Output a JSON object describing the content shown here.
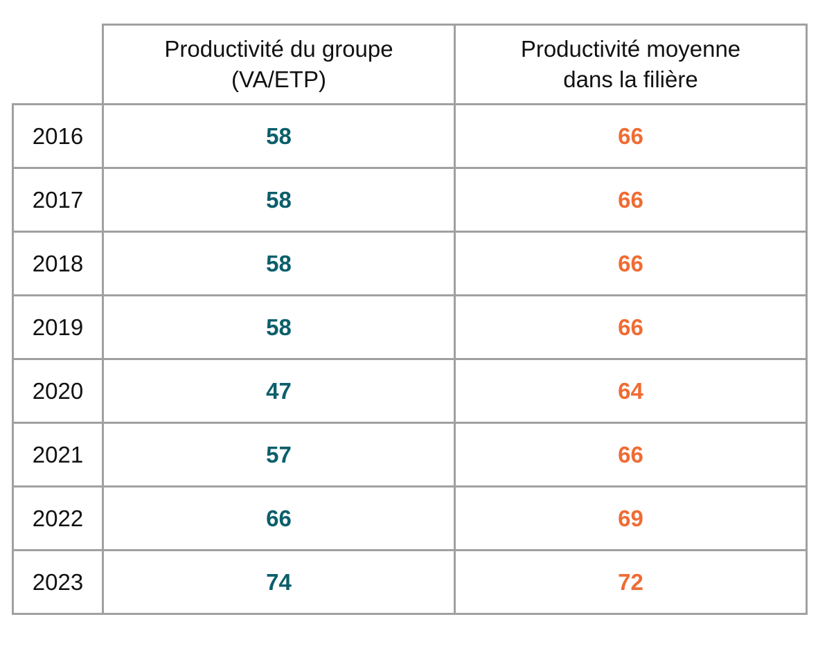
{
  "colors": {
    "group": "#0b5f6b",
    "filiere": "#ef6c33",
    "border": "#a0a0a0"
  },
  "chart_data": {
    "type": "table",
    "columns": [
      "",
      "Productivité du groupe (VA/ETP)",
      "Productivité moyenne dans la filière"
    ],
    "column_lines": [
      [
        "Productivité du groupe",
        "(VA/ETP)"
      ],
      [
        "Productivité moyenne",
        "dans la filière"
      ]
    ],
    "rows": [
      {
        "year": "2016",
        "group": "58",
        "filiere": "66"
      },
      {
        "year": "2017",
        "group": "58",
        "filiere": "66"
      },
      {
        "year": "2018",
        "group": "58",
        "filiere": "66"
      },
      {
        "year": "2019",
        "group": "58",
        "filiere": "66"
      },
      {
        "year": "2020",
        "group": "47",
        "filiere": "64"
      },
      {
        "year": "2021",
        "group": "57",
        "filiere": "66"
      },
      {
        "year": "2022",
        "group": "66",
        "filiere": "69"
      },
      {
        "year": "2023",
        "group": "74",
        "filiere": "72"
      }
    ]
  }
}
